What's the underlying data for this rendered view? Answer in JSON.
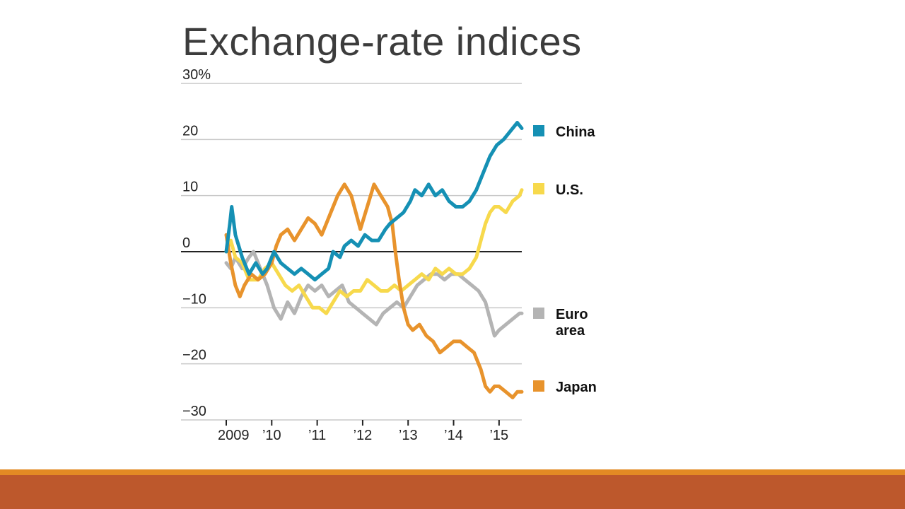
{
  "slide": {
    "title": "Exchange-rate indices"
  },
  "theme": {
    "footer_color": "#bd582c",
    "footer_accent_color": "#e38a24"
  },
  "chart_data": {
    "type": "line",
    "title": "",
    "xlabel": "",
    "ylabel": "",
    "ylim": [
      -30,
      30
    ],
    "xlim": [
      2009,
      2015.5
    ],
    "y_ticks": [
      30,
      20,
      10,
      0,
      -10,
      -20,
      -30
    ],
    "y_tick_labels": [
      "30%",
      "20",
      "10",
      "0",
      "−10",
      "−20",
      "−30"
    ],
    "x_ticks": [
      2009,
      2010,
      2011,
      2012,
      2013,
      2014,
      2015
    ],
    "x_tick_labels": [
      "2009",
      "’10",
      "’11",
      "’12",
      "’13",
      "’14",
      "’15"
    ],
    "legend_placement": "right, aligned to series end values",
    "zero_line": true,
    "series": [
      {
        "name": "China",
        "legend": [
          "China"
        ],
        "color": "#1590b4",
        "points": [
          [
            2009.0,
            0
          ],
          [
            2009.08,
            5
          ],
          [
            2009.12,
            8
          ],
          [
            2009.2,
            3
          ],
          [
            2009.35,
            -1
          ],
          [
            2009.5,
            -4
          ],
          [
            2009.65,
            -2
          ],
          [
            2009.8,
            -4
          ],
          [
            2009.9,
            -3
          ],
          [
            2010.05,
            0
          ],
          [
            2010.2,
            -2
          ],
          [
            2010.35,
            -3
          ],
          [
            2010.5,
            -4
          ],
          [
            2010.65,
            -3
          ],
          [
            2010.8,
            -4
          ],
          [
            2010.95,
            -5
          ],
          [
            2011.1,
            -4
          ],
          [
            2011.25,
            -3
          ],
          [
            2011.35,
            0
          ],
          [
            2011.5,
            -1
          ],
          [
            2011.6,
            1
          ],
          [
            2011.75,
            2
          ],
          [
            2011.9,
            1
          ],
          [
            2012.05,
            3
          ],
          [
            2012.2,
            2
          ],
          [
            2012.35,
            2
          ],
          [
            2012.5,
            4
          ],
          [
            2012.6,
            5
          ],
          [
            2012.75,
            6
          ],
          [
            2012.9,
            7
          ],
          [
            2013.05,
            9
          ],
          [
            2013.15,
            11
          ],
          [
            2013.3,
            10
          ],
          [
            2013.45,
            12
          ],
          [
            2013.6,
            10
          ],
          [
            2013.75,
            11
          ],
          [
            2013.9,
            9
          ],
          [
            2014.05,
            8
          ],
          [
            2014.2,
            8
          ],
          [
            2014.35,
            9
          ],
          [
            2014.5,
            11
          ],
          [
            2014.65,
            14
          ],
          [
            2014.8,
            17
          ],
          [
            2014.95,
            19
          ],
          [
            2015.1,
            20
          ],
          [
            2015.2,
            21
          ],
          [
            2015.3,
            22
          ],
          [
            2015.4,
            23
          ],
          [
            2015.5,
            22
          ]
        ]
      },
      {
        "name": "U.S.",
        "legend": [
          "U.S."
        ],
        "color": "#f7d94c",
        "points": [
          [
            2009.0,
            0
          ],
          [
            2009.1,
            2
          ],
          [
            2009.2,
            -1
          ],
          [
            2009.35,
            -2
          ],
          [
            2009.5,
            -5
          ],
          [
            2009.7,
            -5
          ],
          [
            2009.85,
            -3
          ],
          [
            2010.0,
            -2
          ],
          [
            2010.15,
            -4
          ],
          [
            2010.3,
            -6
          ],
          [
            2010.45,
            -7
          ],
          [
            2010.6,
            -6
          ],
          [
            2010.75,
            -8
          ],
          [
            2010.9,
            -10
          ],
          [
            2011.05,
            -10
          ],
          [
            2011.2,
            -11
          ],
          [
            2011.35,
            -9
          ],
          [
            2011.5,
            -7
          ],
          [
            2011.65,
            -8
          ],
          [
            2011.8,
            -7
          ],
          [
            2011.95,
            -7
          ],
          [
            2012.1,
            -5
          ],
          [
            2012.25,
            -6
          ],
          [
            2012.4,
            -7
          ],
          [
            2012.55,
            -7
          ],
          [
            2012.7,
            -6
          ],
          [
            2012.85,
            -7
          ],
          [
            2013.0,
            -6
          ],
          [
            2013.15,
            -5
          ],
          [
            2013.3,
            -4
          ],
          [
            2013.45,
            -5
          ],
          [
            2013.6,
            -3
          ],
          [
            2013.75,
            -4
          ],
          [
            2013.9,
            -3
          ],
          [
            2014.05,
            -4
          ],
          [
            2014.2,
            -4
          ],
          [
            2014.35,
            -3
          ],
          [
            2014.5,
            -1
          ],
          [
            2014.6,
            2
          ],
          [
            2014.7,
            5
          ],
          [
            2014.8,
            7
          ],
          [
            2014.9,
            8
          ],
          [
            2015.0,
            8
          ],
          [
            2015.15,
            7
          ],
          [
            2015.3,
            9
          ],
          [
            2015.45,
            10
          ],
          [
            2015.5,
            11
          ]
        ]
      },
      {
        "name": "Euro area",
        "legend": [
          "Euro",
          "area"
        ],
        "color": "#b4b4b4",
        "points": [
          [
            2009.0,
            -2
          ],
          [
            2009.1,
            -3
          ],
          [
            2009.2,
            -1
          ],
          [
            2009.35,
            -3
          ],
          [
            2009.5,
            -1
          ],
          [
            2009.6,
            0
          ],
          [
            2009.75,
            -3
          ],
          [
            2009.9,
            -6
          ],
          [
            2010.05,
            -10
          ],
          [
            2010.2,
            -12
          ],
          [
            2010.35,
            -9
          ],
          [
            2010.5,
            -11
          ],
          [
            2010.65,
            -8
          ],
          [
            2010.8,
            -6
          ],
          [
            2010.95,
            -7
          ],
          [
            2011.1,
            -6
          ],
          [
            2011.25,
            -8
          ],
          [
            2011.4,
            -7
          ],
          [
            2011.55,
            -6
          ],
          [
            2011.7,
            -9
          ],
          [
            2011.85,
            -10
          ],
          [
            2012.0,
            -11
          ],
          [
            2012.15,
            -12
          ],
          [
            2012.3,
            -13
          ],
          [
            2012.45,
            -11
          ],
          [
            2012.6,
            -10
          ],
          [
            2012.75,
            -9
          ],
          [
            2012.9,
            -10
          ],
          [
            2013.05,
            -8
          ],
          [
            2013.2,
            -6
          ],
          [
            2013.35,
            -5
          ],
          [
            2013.5,
            -4
          ],
          [
            2013.65,
            -4
          ],
          [
            2013.8,
            -5
          ],
          [
            2013.95,
            -4
          ],
          [
            2014.1,
            -4
          ],
          [
            2014.25,
            -5
          ],
          [
            2014.4,
            -6
          ],
          [
            2014.55,
            -7
          ],
          [
            2014.7,
            -9
          ],
          [
            2014.8,
            -12
          ],
          [
            2014.9,
            -15
          ],
          [
            2015.0,
            -14
          ],
          [
            2015.15,
            -13
          ],
          [
            2015.3,
            -12
          ],
          [
            2015.45,
            -11
          ],
          [
            2015.5,
            -11
          ]
        ]
      },
      {
        "name": "Japan",
        "legend": [
          "Japan"
        ],
        "color": "#e8932c",
        "points": [
          [
            2009.0,
            3
          ],
          [
            2009.1,
            -2
          ],
          [
            2009.2,
            -6
          ],
          [
            2009.3,
            -8
          ],
          [
            2009.4,
            -6
          ],
          [
            2009.55,
            -4
          ],
          [
            2009.7,
            -5
          ],
          [
            2009.85,
            -4
          ],
          [
            2010.0,
            -2
          ],
          [
            2010.1,
            1
          ],
          [
            2010.2,
            3
          ],
          [
            2010.35,
            4
          ],
          [
            2010.5,
            2
          ],
          [
            2010.65,
            4
          ],
          [
            2010.8,
            6
          ],
          [
            2010.95,
            5
          ],
          [
            2011.1,
            3
          ],
          [
            2011.2,
            5
          ],
          [
            2011.3,
            7
          ],
          [
            2011.45,
            10
          ],
          [
            2011.6,
            12
          ],
          [
            2011.75,
            10
          ],
          [
            2011.85,
            7
          ],
          [
            2011.95,
            4
          ],
          [
            2012.1,
            8
          ],
          [
            2012.25,
            12
          ],
          [
            2012.4,
            10
          ],
          [
            2012.55,
            8
          ],
          [
            2012.65,
            5
          ],
          [
            2012.72,
            0
          ],
          [
            2012.8,
            -5
          ],
          [
            2012.9,
            -10
          ],
          [
            2013.0,
            -13
          ],
          [
            2013.1,
            -14
          ],
          [
            2013.25,
            -13
          ],
          [
            2013.4,
            -15
          ],
          [
            2013.55,
            -16
          ],
          [
            2013.7,
            -18
          ],
          [
            2013.85,
            -17
          ],
          [
            2014.0,
            -16
          ],
          [
            2014.15,
            -16
          ],
          [
            2014.3,
            -17
          ],
          [
            2014.45,
            -18
          ],
          [
            2014.6,
            -21
          ],
          [
            2014.7,
            -24
          ],
          [
            2014.8,
            -25
          ],
          [
            2014.9,
            -24
          ],
          [
            2015.0,
            -24
          ],
          [
            2015.15,
            -25
          ],
          [
            2015.3,
            -26
          ],
          [
            2015.4,
            -25
          ],
          [
            2015.5,
            -25
          ]
        ]
      }
    ]
  }
}
